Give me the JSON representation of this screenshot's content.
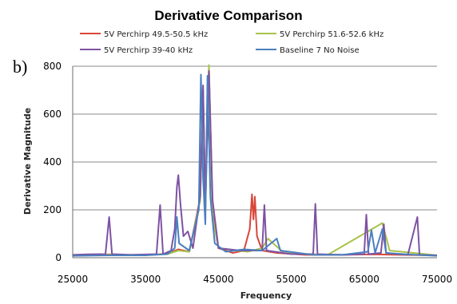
{
  "panel_label": "b)",
  "chart_data": {
    "type": "line",
    "title": "Derivative Comparison",
    "xlabel": "Frequency",
    "ylabel": "Derivative Magnitude",
    "xlim": [
      25000,
      75000
    ],
    "ylim": [
      0,
      800
    ],
    "x_ticks": [
      25000,
      35000,
      45000,
      55000,
      65000,
      75000
    ],
    "y_ticks": [
      0,
      200,
      400,
      600,
      800
    ],
    "grid": "horizontal",
    "legend_position": "top",
    "series": [
      {
        "name": "5V Perchirp 49.5-50.5 kHz",
        "color": "#d9463a",
        "points": [
          [
            25000,
            10
          ],
          [
            28000,
            12
          ],
          [
            30000,
            14
          ],
          [
            33000,
            10
          ],
          [
            36000,
            12
          ],
          [
            38000,
            18
          ],
          [
            39500,
            35
          ],
          [
            41000,
            25
          ],
          [
            42500,
            250
          ],
          [
            42900,
            700
          ],
          [
            43200,
            220
          ],
          [
            43700,
            790
          ],
          [
            44200,
            180
          ],
          [
            45000,
            40
          ],
          [
            47000,
            20
          ],
          [
            48500,
            30
          ],
          [
            49300,
            120
          ],
          [
            49600,
            265
          ],
          [
            49800,
            160
          ],
          [
            50000,
            255
          ],
          [
            50300,
            90
          ],
          [
            51000,
            30
          ],
          [
            53000,
            20
          ],
          [
            57000,
            12
          ],
          [
            62000,
            12
          ],
          [
            66000,
            14
          ],
          [
            70000,
            12
          ],
          [
            75000,
            10
          ]
        ]
      },
      {
        "name": "5V Perchirp 51.6-52.6 kHz",
        "color": "#a8c24a",
        "points": [
          [
            25000,
            10
          ],
          [
            30000,
            12
          ],
          [
            35000,
            12
          ],
          [
            38000,
            15
          ],
          [
            39500,
            30
          ],
          [
            41000,
            25
          ],
          [
            42500,
            240
          ],
          [
            42900,
            690
          ],
          [
            43200,
            210
          ],
          [
            43700,
            805
          ],
          [
            44200,
            170
          ],
          [
            45000,
            40
          ],
          [
            47500,
            30
          ],
          [
            49000,
            25
          ],
          [
            51000,
            40
          ],
          [
            51800,
            80
          ],
          [
            52500,
            60
          ],
          [
            54000,
            20
          ],
          [
            60000,
            12
          ],
          [
            67500,
            145
          ],
          [
            68500,
            30
          ],
          [
            75000,
            10
          ]
        ]
      },
      {
        "name": "5V Perchirp 39-40 kHz",
        "color": "#7e52a3",
        "points": [
          [
            25000,
            12
          ],
          [
            27000,
            14
          ],
          [
            29500,
            15
          ],
          [
            30000,
            170
          ],
          [
            30400,
            15
          ],
          [
            33000,
            12
          ],
          [
            36500,
            15
          ],
          [
            37000,
            220
          ],
          [
            37400,
            15
          ],
          [
            38500,
            30
          ],
          [
            39000,
            120
          ],
          [
            39300,
            295
          ],
          [
            39500,
            345
          ],
          [
            39800,
            220
          ],
          [
            40200,
            90
          ],
          [
            40800,
            110
          ],
          [
            41500,
            40
          ],
          [
            42500,
            260
          ],
          [
            42900,
            720
          ],
          [
            43200,
            200
          ],
          [
            43700,
            780
          ],
          [
            44200,
            240
          ],
          [
            45000,
            40
          ],
          [
            48000,
            30
          ],
          [
            51000,
            30
          ],
          [
            51300,
            220
          ],
          [
            51600,
            30
          ],
          [
            55000,
            15
          ],
          [
            58000,
            15
          ],
          [
            58300,
            225
          ],
          [
            58600,
            15
          ],
          [
            62000,
            12
          ],
          [
            65000,
            15
          ],
          [
            65300,
            180
          ],
          [
            65600,
            15
          ],
          [
            67300,
            20
          ],
          [
            67700,
            140
          ],
          [
            68000,
            20
          ],
          [
            71000,
            12
          ],
          [
            72300,
            170
          ],
          [
            72600,
            12
          ],
          [
            75000,
            10
          ]
        ]
      },
      {
        "name": "Baseline 7 No Noise",
        "color": "#4a7fbf",
        "points": [
          [
            25000,
            8
          ],
          [
            30000,
            10
          ],
          [
            35000,
            10
          ],
          [
            38000,
            15
          ],
          [
            39000,
            40
          ],
          [
            39300,
            170
          ],
          [
            39600,
            60
          ],
          [
            41000,
            30
          ],
          [
            42300,
            200
          ],
          [
            42600,
            765
          ],
          [
            42900,
            330
          ],
          [
            43200,
            140
          ],
          [
            43500,
            760
          ],
          [
            43900,
            250
          ],
          [
            44500,
            60
          ],
          [
            46000,
            25
          ],
          [
            48500,
            35
          ],
          [
            51000,
            30
          ],
          [
            53000,
            80
          ],
          [
            53500,
            30
          ],
          [
            58000,
            12
          ],
          [
            62000,
            12
          ],
          [
            65500,
            25
          ],
          [
            66000,
            115
          ],
          [
            66500,
            20
          ],
          [
            67500,
            120
          ],
          [
            68000,
            20
          ],
          [
            72000,
            12
          ],
          [
            75000,
            8
          ]
        ]
      }
    ]
  }
}
